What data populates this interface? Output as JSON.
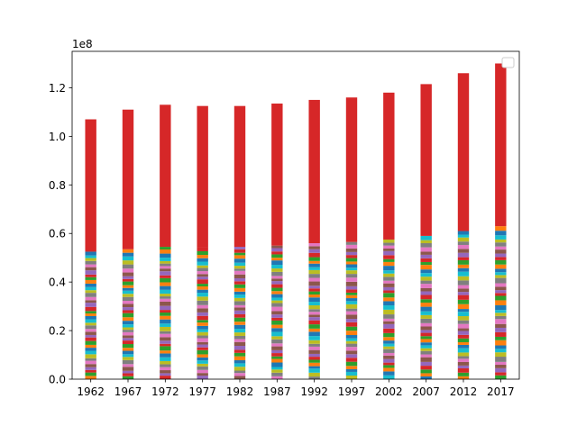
{
  "chart_data": {
    "type": "bar",
    "stacked": true,
    "title": "",
    "xlabel": "",
    "ylabel": "",
    "y_offset_label": "1e8",
    "ylim": [
      0,
      1.35
    ],
    "y_ticks": [
      0.0,
      0.2,
      0.4,
      0.6,
      0.8,
      1.0,
      1.2
    ],
    "y_tick_labels": [
      "0.0",
      "0.2",
      "0.4",
      "0.6",
      "0.8",
      "1.0",
      "1.2"
    ],
    "categories": [
      "1962",
      "1967",
      "1972",
      "1977",
      "1982",
      "1987",
      "1992",
      "1997",
      "2002",
      "2007",
      "2012",
      "2017"
    ],
    "grid": false,
    "legend": "top-right (empty)",
    "segment_colors": [
      "#ff7f0e",
      "#2ca02c",
      "#d62728",
      "#9467bd",
      "#8c564b",
      "#e377c2",
      "#7f7f7f",
      "#bcbd22",
      "#17becf",
      "#1f77b4"
    ],
    "segments_per_bar": 40,
    "top_series_color": "#d62728",
    "stacked_base_totals": [
      0.525,
      0.535,
      0.545,
      0.545,
      0.545,
      0.55,
      0.56,
      0.565,
      0.575,
      0.59,
      0.61,
      0.63
    ],
    "totals": [
      1.07,
      1.11,
      1.13,
      1.125,
      1.125,
      1.135,
      1.15,
      1.16,
      1.18,
      1.215,
      1.26,
      1.3
    ]
  }
}
